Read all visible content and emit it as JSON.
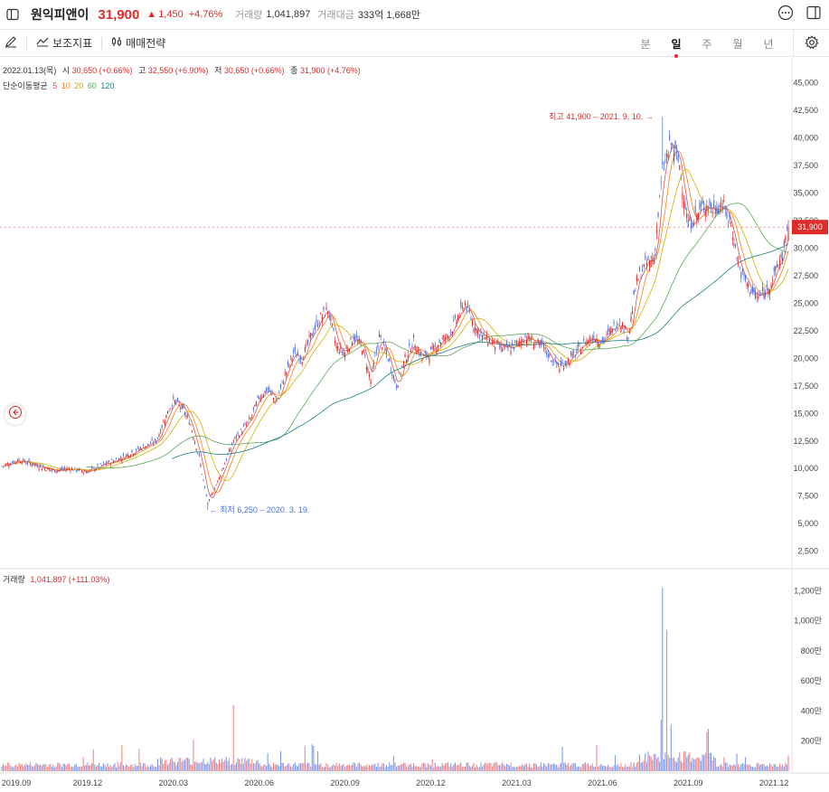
{
  "header": {
    "title": "원익피앤이",
    "price": "31,900",
    "change_arrow": "▲",
    "change": "1,450",
    "change_pct": "+4.76%",
    "volume_label": "거래량",
    "volume": "1,041,897",
    "amount_label": "거래대금",
    "amount": "333억 1,668만"
  },
  "toolbar": {
    "indicator_label": "보조지표",
    "strategy_label": "매매전략",
    "periods": [
      "분",
      "일",
      "주",
      "월",
      "년"
    ],
    "active_period": "일"
  },
  "info": {
    "date": "2022.01.13(목)",
    "open_label": "시",
    "open": "30,650 (+0.66%)",
    "high_label": "고",
    "high": "32,550 (+6.90%)",
    "low_label": "저",
    "low": "30,650 (+0.66%)",
    "close_label": "종",
    "close": "31,900 (+4.76%)"
  },
  "ma": {
    "label": "단순이동평균",
    "periods": [
      "5",
      "10",
      "20",
      "60",
      "120"
    ],
    "colors": [
      "#d9534f",
      "#ff7f0e",
      "#d4b000",
      "#5aa85a",
      "#1a7f7f"
    ]
  },
  "volume_info": {
    "label": "거래량",
    "value": "1,041,897 (+111.03%)"
  },
  "colors": {
    "up": "#e02b2b",
    "down": "#4a6fe3",
    "accent": "#e02b2b"
  },
  "chart_data": {
    "type": "candlestick",
    "price_axis_ticks": [
      "45,000",
      "42,500",
      "40,000",
      "37,500",
      "35,000",
      "32,500",
      "30,000",
      "27,500",
      "25,000",
      "22,500",
      "20,000",
      "17,500",
      "15,000",
      "12,500",
      "10,000",
      "7,500",
      "5,000",
      "2,500"
    ],
    "price_ylim": [
      1000,
      47250
    ],
    "volume_axis_ticks": [
      "1,200만",
      "1,000만",
      "800만",
      "600만",
      "400만",
      "200만"
    ],
    "volume_ylim": [
      0,
      12500000
    ],
    "x_labels": [
      "2019.09",
      "2019.12",
      "2020.03",
      "2020.06",
      "2020.09",
      "2020.12",
      "2021.03",
      "2021.06",
      "2021.09",
      "2021.12"
    ],
    "current_price_label": "31,900",
    "current_price": 31900,
    "high_annotation": "최고 41,900 – 2021. 9. 10.",
    "low_annotation": "최저 6,250 – 2020. 3. 19.",
    "high_value": 41900,
    "low_value": 6250,
    "approx_close_path": [
      [
        0,
        10200
      ],
      [
        12,
        10800
      ],
      [
        24,
        10300
      ],
      [
        36,
        9800
      ],
      [
        48,
        10000
      ],
      [
        60,
        9700
      ],
      [
        72,
        10400
      ],
      [
        84,
        11000
      ],
      [
        96,
        11800
      ],
      [
        108,
        12500
      ],
      [
        114,
        14500
      ],
      [
        120,
        16200
      ],
      [
        126,
        15500
      ],
      [
        132,
        14000
      ],
      [
        138,
        11000
      ],
      [
        144,
        6800
      ],
      [
        150,
        8500
      ],
      [
        156,
        10500
      ],
      [
        162,
        12500
      ],
      [
        168,
        13500
      ],
      [
        174,
        14500
      ],
      [
        180,
        16500
      ],
      [
        186,
        17200
      ],
      [
        192,
        16000
      ],
      [
        198,
        18500
      ],
      [
        204,
        20500
      ],
      [
        210,
        20000
      ],
      [
        216,
        22000
      ],
      [
        222,
        23500
      ],
      [
        228,
        24500
      ],
      [
        234,
        21000
      ],
      [
        240,
        20500
      ],
      [
        246,
        22000
      ],
      [
        252,
        21000
      ],
      [
        258,
        18000
      ],
      [
        264,
        22000
      ],
      [
        270,
        20000
      ],
      [
        276,
        17500
      ],
      [
        282,
        20000
      ],
      [
        288,
        21500
      ],
      [
        294,
        20000
      ],
      [
        300,
        20500
      ],
      [
        306,
        21500
      ],
      [
        312,
        22000
      ],
      [
        318,
        23500
      ],
      [
        324,
        25000
      ],
      [
        330,
        23000
      ],
      [
        336,
        22000
      ],
      [
        342,
        21500
      ],
      [
        348,
        21000
      ],
      [
        354,
        20800
      ],
      [
        360,
        21200
      ],
      [
        366,
        22000
      ],
      [
        372,
        21500
      ],
      [
        378,
        21000
      ],
      [
        384,
        20000
      ],
      [
        390,
        19200
      ],
      [
        396,
        19800
      ],
      [
        402,
        20500
      ],
      [
        408,
        21500
      ],
      [
        414,
        22000
      ],
      [
        420,
        21500
      ],
      [
        426,
        22500
      ],
      [
        432,
        23500
      ],
      [
        438,
        22000
      ],
      [
        444,
        27000
      ],
      [
        450,
        28500
      ],
      [
        456,
        29000
      ],
      [
        462,
        37000
      ],
      [
        468,
        39500
      ],
      [
        474,
        37500
      ],
      [
        480,
        32000
      ],
      [
        486,
        33000
      ],
      [
        492,
        34000
      ],
      [
        498,
        33500
      ],
      [
        504,
        34000
      ],
      [
        510,
        32000
      ],
      [
        516,
        28000
      ],
      [
        522,
        26500
      ],
      [
        528,
        25500
      ],
      [
        534,
        26000
      ],
      [
        540,
        27500
      ],
      [
        546,
        29500
      ],
      [
        550,
        31900
      ]
    ],
    "ma_series": [
      {
        "name": "5"
      },
      {
        "name": "10"
      },
      {
        "name": "20"
      },
      {
        "name": "60"
      },
      {
        "name": "120"
      }
    ],
    "volume_spikes": [
      {
        "t": 162,
        "value": 4400000
      },
      {
        "t": 462,
        "value": 12200000
      },
      {
        "t": 465,
        "value": 9400000
      },
      {
        "t": 468,
        "value": 3100000
      }
    ]
  }
}
